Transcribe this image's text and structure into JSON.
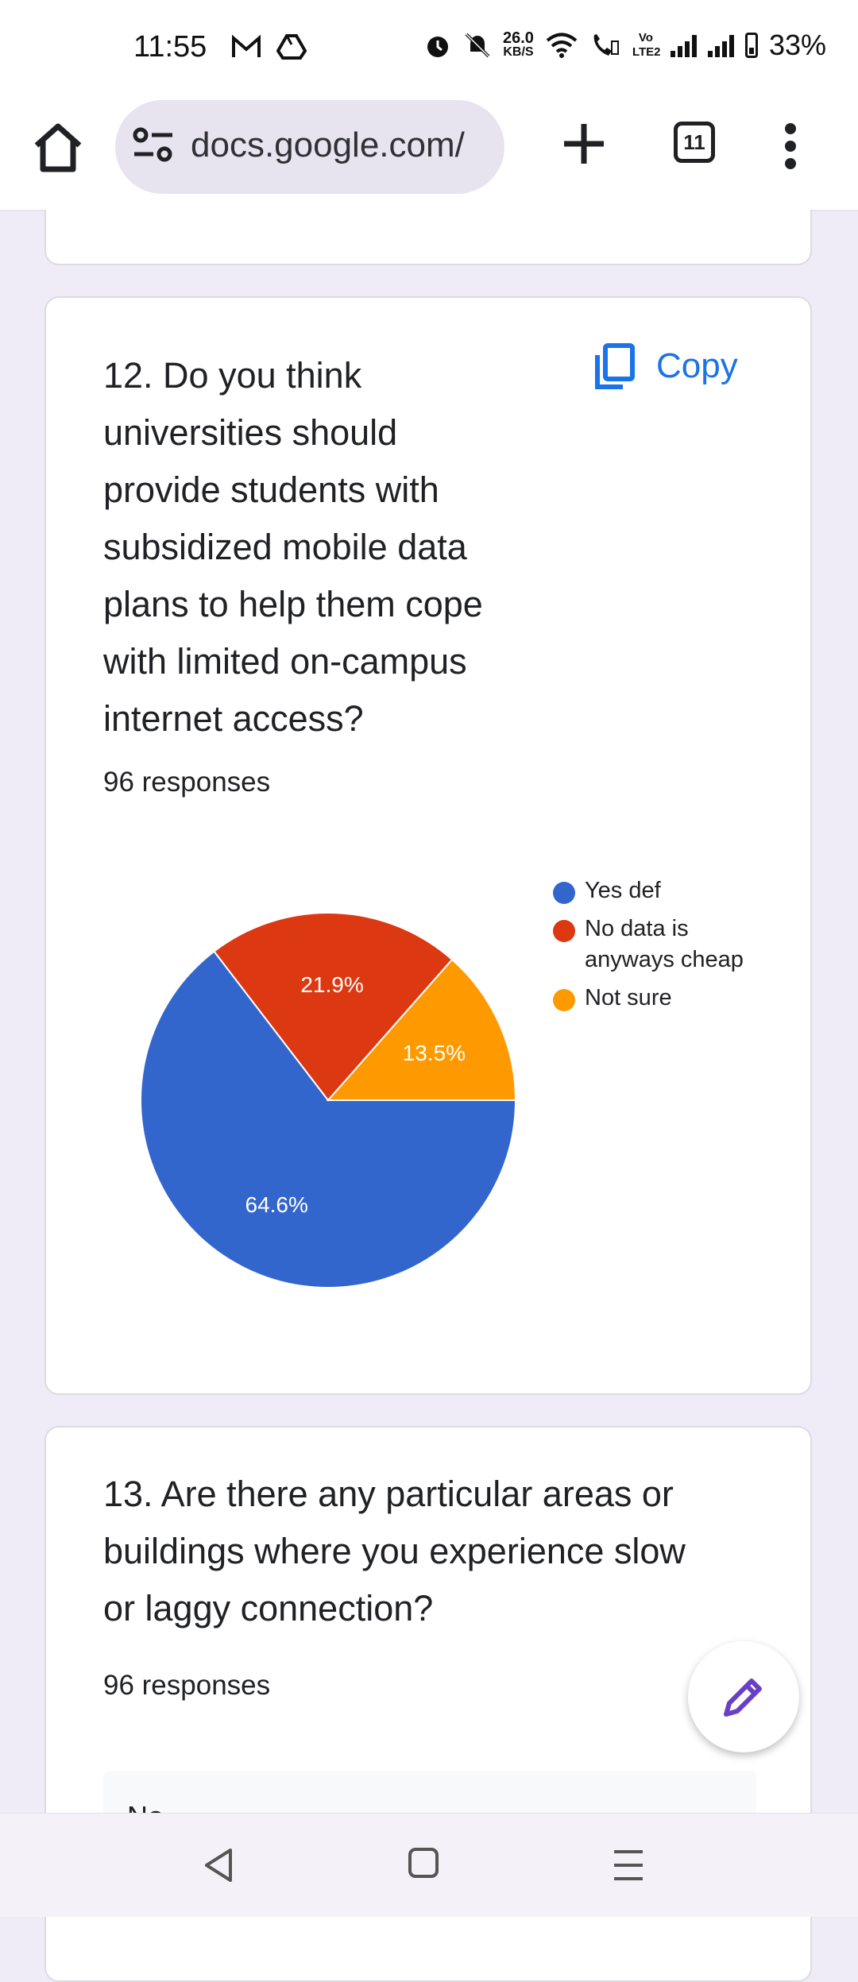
{
  "status_bar": {
    "time": "11:55",
    "net_speed_top": "26.0",
    "net_speed_unit": "KB/S",
    "volte_label": "Vo LTE2",
    "battery": "33%"
  },
  "browser": {
    "url": "docs.google.com/",
    "tab_count": "11"
  },
  "question12": {
    "title_lines": [
      "12. Do you think",
      "universities should",
      "provide students with",
      "subsidized mobile data",
      "plans to help them cope",
      "with limited on-campus",
      "internet access?"
    ],
    "responses": "96 responses",
    "copy_label": "Copy"
  },
  "chart_data": {
    "type": "pie",
    "slices": [
      {
        "label": "Yes def",
        "value": 64.6,
        "display": "64.6%",
        "color": "#3366cc"
      },
      {
        "label": "No data is anyways cheap",
        "value": 21.9,
        "display": "21.9%",
        "color": "#dc3912"
      },
      {
        "label": "Not sure",
        "value": 13.5,
        "display": "13.5%",
        "color": "#ff9900"
      }
    ],
    "legend": [
      "Yes def",
      "No data is anyways cheap",
      "Not sure"
    ],
    "legend_lines": [
      [
        "Yes def"
      ],
      [
        "No data is",
        "anyways cheap"
      ],
      [
        "Not sure"
      ]
    ],
    "legend_position": "right"
  },
  "question13": {
    "title_lines": [
      "13. Are there any particular areas or",
      "buildings where you experience slow",
      "or laggy connection?"
    ],
    "responses": "96 responses",
    "first_answer": "No"
  },
  "icons": {
    "home": "home-icon",
    "site_settings": "tune-icon",
    "new_tab": "plus-icon",
    "tabs": "tab-switcher-icon",
    "menu": "more-vert-icon",
    "copy": "copy-icon",
    "edit": "pencil-icon",
    "back": "back-triangle-icon",
    "home_nav": "home-square-icon",
    "recents": "menu-lines-icon"
  }
}
